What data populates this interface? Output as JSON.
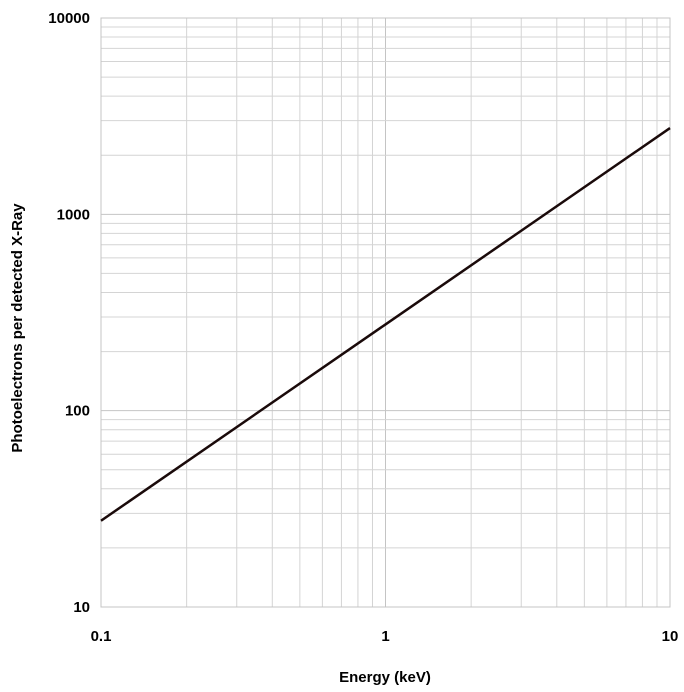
{
  "chart_data": {
    "type": "line",
    "title": "",
    "xlabel": "Energy (keV)",
    "ylabel": "Photoelectrons per detected X-Ray",
    "xscale": "log",
    "yscale": "log",
    "xlim": [
      0.1,
      10
    ],
    "ylim": [
      10,
      10000
    ],
    "grid": true,
    "legend": "none",
    "x_ticks": [
      {
        "value": 0.1,
        "label": "0.1"
      },
      {
        "value": 1,
        "label": "1"
      },
      {
        "value": 10,
        "label": "10"
      }
    ],
    "y_ticks": [
      {
        "value": 10,
        "label": "10"
      },
      {
        "value": 100,
        "label": "100"
      },
      {
        "value": 1000,
        "label": "1000"
      },
      {
        "value": 10000,
        "label": "10000"
      }
    ],
    "series": [
      {
        "x": [
          0.1,
          1,
          10
        ],
        "y": [
          27.5,
          275,
          2750
        ]
      }
    ],
    "colors": {
      "line": "#1a0a0a",
      "grid": "#c4c4c4"
    }
  }
}
